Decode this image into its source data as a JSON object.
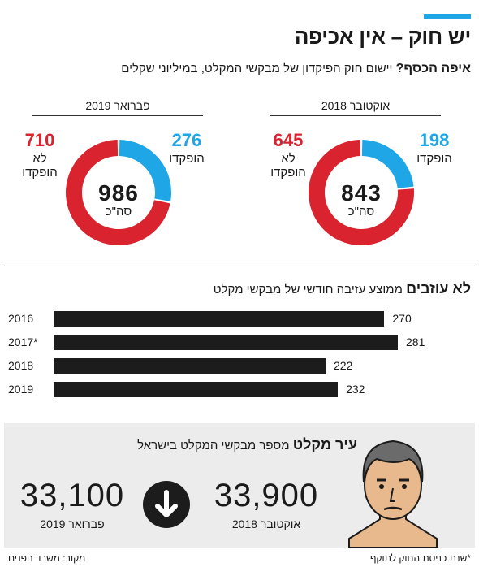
{
  "title": "יש חוק – אין אכיפה",
  "subtitle": {
    "bold": "איפה הכסף?",
    "text": " יישום חוק הפיקדון של מבקשי המקלט, במיליוני שקלים"
  },
  "colors": {
    "accent": "#1ea6e6",
    "deposited": "#1ea6e6",
    "not_deposited": "#d9232f",
    "bars": "#1c1c1c"
  },
  "chart_data": [
    {
      "type": "pie",
      "title": "אוקטובר 2018",
      "slices": [
        {
          "label": "הופקדו",
          "value": 198
        },
        {
          "label": "לא הופקדו",
          "value": 645
        }
      ],
      "total": 843,
      "total_label": "סה\"כ"
    },
    {
      "type": "pie",
      "title": "פברואר 2019",
      "slices": [
        {
          "label": "הופקדו",
          "value": 276
        },
        {
          "label": "לא הופקדו",
          "value": 710
        }
      ],
      "total": 986,
      "total_label": "סה\"כ"
    },
    {
      "type": "bar",
      "orientation": "horizontal",
      "title": "לא עוזבים",
      "subtitle": "ממוצע עזיבה חודשי של מבקשי מקלט",
      "categories": [
        "2016",
        "2017*",
        "2018",
        "2019"
      ],
      "values": [
        270,
        281,
        222,
        232
      ],
      "xlim": [
        0,
        281
      ]
    }
  ],
  "labels": {
    "period_oct": "אוקטובר 2018",
    "period_feb": "פברואר 2019",
    "deposited": "הופקדו",
    "not_line1": "לא",
    "not_line2": "הופקדו",
    "oct_deposited": "198",
    "oct_not": "645",
    "oct_total": "843",
    "feb_deposited": "276",
    "feb_not": "710",
    "feb_total": "986",
    "total_label": "סה\"כ"
  },
  "asylum": {
    "title_bold": "עיר מקלט",
    "title_text": " מספר מבקשי המקלט בישראל",
    "oct_value": "33,900",
    "oct_label": "אוקטובר 2018",
    "feb_value": "33,100",
    "feb_label": "פברואר 2019"
  },
  "footer": {
    "note": "*שנת כניסת החוק לתוקף",
    "source": "מקור: משרד הפנים"
  }
}
